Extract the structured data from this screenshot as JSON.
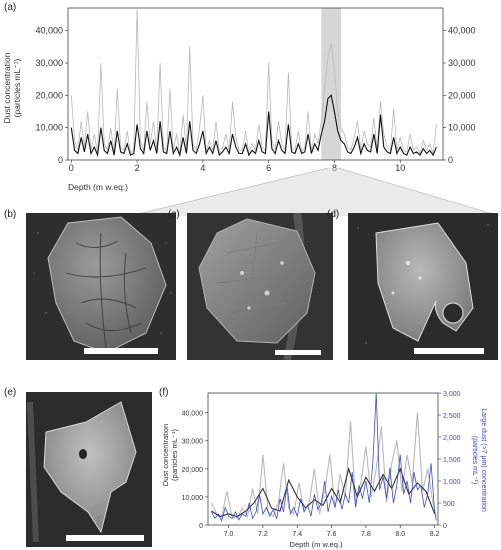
{
  "figure": {
    "panels": {
      "a": "(a)",
      "b": "(b)",
      "c": "(c)",
      "d": "(d)",
      "e": "(e)",
      "f": "(f)"
    }
  },
  "chart_data": [
    {
      "id": "a",
      "type": "line",
      "xlabel": "Depth (m w.eq.)",
      "ylabel": "Dust concentration",
      "ylabel_unit": "(particles mL⁻¹)",
      "xlim": [
        -0.1,
        11.3
      ],
      "ylim": [
        0,
        47000
      ],
      "x_ticks": [
        0,
        2,
        4,
        6,
        8,
        10
      ],
      "y_ticks": [
        0,
        10000,
        20000,
        30000,
        40000
      ],
      "y_tick_labels": [
        "0",
        "10,000",
        "20,000",
        "30,000",
        "40,000"
      ],
      "highlight_region": [
        7.6,
        8.2
      ],
      "series": [
        {
          "color": "#b8b8b8",
          "style": "raw",
          "x": [
            0.0,
            0.1,
            0.2,
            0.3,
            0.4,
            0.5,
            0.6,
            0.7,
            0.8,
            0.9,
            1.0,
            1.1,
            1.2,
            1.3,
            1.4,
            1.5,
            1.6,
            1.7,
            1.8,
            1.9,
            2.0,
            2.1,
            2.2,
            2.3,
            2.4,
            2.5,
            2.6,
            2.7,
            2.8,
            2.9,
            3.0,
            3.1,
            3.2,
            3.3,
            3.4,
            3.5,
            3.6,
            3.7,
            3.8,
            3.9,
            4.0,
            4.1,
            4.2,
            4.3,
            4.4,
            4.5,
            4.6,
            4.7,
            4.8,
            4.9,
            5.0,
            5.1,
            5.2,
            5.3,
            5.4,
            5.5,
            5.6,
            5.7,
            5.8,
            5.9,
            6.0,
            6.1,
            6.2,
            6.3,
            6.4,
            6.5,
            6.6,
            6.7,
            6.8,
            6.9,
            7.0,
            7.1,
            7.2,
            7.3,
            7.4,
            7.5,
            7.6,
            7.7,
            7.8,
            7.9,
            8.0,
            8.1,
            8.2,
            8.3,
            8.4,
            8.5,
            8.6,
            8.7,
            8.8,
            8.9,
            9.0,
            9.1,
            9.2,
            9.3,
            9.4,
            9.5,
            9.6,
            9.7,
            9.8,
            9.9,
            10.0,
            10.1,
            10.2,
            10.3,
            10.4,
            10.5,
            10.6,
            10.7,
            10.8,
            10.9,
            11.0,
            11.1
          ],
          "y": [
            20000,
            6000,
            3000,
            12000,
            4000,
            15000,
            3000,
            8000,
            2000,
            30000,
            5000,
            3000,
            10000,
            2000,
            22000,
            4000,
            3000,
            9000,
            2000,
            3500,
            47000,
            6000,
            3000,
            18000,
            5000,
            12000,
            3000,
            30000,
            4000,
            2500,
            22000,
            3000,
            8000,
            2000,
            14000,
            3000,
            35000,
            5000,
            3000,
            10000,
            20000,
            2500,
            6000,
            3000,
            12000,
            2000,
            4000,
            8000,
            3000,
            18000,
            7000,
            3000,
            3000,
            9000,
            2000,
            5000,
            3000,
            11000,
            4000,
            3000,
            30000,
            6000,
            3000,
            12000,
            5000,
            3000,
            27000,
            4000,
            3000,
            9000,
            2500,
            4000,
            15000,
            3000,
            8000,
            5000,
            12000,
            22000,
            32000,
            36000,
            28000,
            15000,
            10000,
            8000,
            4000,
            3000,
            7000,
            12000,
            3000,
            9000,
            5000,
            4000,
            13000,
            3000,
            18000,
            8000,
            4000,
            3000,
            16000,
            3000,
            7000,
            3000,
            2500,
            8000,
            3000,
            4000,
            2000,
            6000,
            3000,
            5000,
            2000,
            11000
          ]
        },
        {
          "color": "#111111",
          "style": "smoothed",
          "x": [
            0.0,
            0.1,
            0.2,
            0.3,
            0.4,
            0.5,
            0.6,
            0.7,
            0.8,
            0.9,
            1.0,
            1.1,
            1.2,
            1.3,
            1.4,
            1.5,
            1.6,
            1.7,
            1.8,
            1.9,
            2.0,
            2.1,
            2.2,
            2.3,
            2.4,
            2.5,
            2.6,
            2.7,
            2.8,
            2.9,
            3.0,
            3.1,
            3.2,
            3.3,
            3.4,
            3.5,
            3.6,
            3.7,
            3.8,
            3.9,
            4.0,
            4.1,
            4.2,
            4.3,
            4.4,
            4.5,
            4.6,
            4.7,
            4.8,
            4.9,
            5.0,
            5.1,
            5.2,
            5.3,
            5.4,
            5.5,
            5.6,
            5.7,
            5.8,
            5.9,
            6.0,
            6.1,
            6.2,
            6.3,
            6.4,
            6.5,
            6.6,
            6.7,
            6.8,
            6.9,
            7.0,
            7.1,
            7.2,
            7.3,
            7.4,
            7.5,
            7.6,
            7.7,
            7.8,
            7.9,
            8.0,
            8.1,
            8.2,
            8.3,
            8.4,
            8.5,
            8.6,
            8.7,
            8.8,
            8.9,
            9.0,
            9.1,
            9.2,
            9.3,
            9.4,
            9.5,
            9.6,
            9.7,
            9.8,
            9.9,
            10.0,
            10.1,
            10.2,
            10.3,
            10.4,
            10.5,
            10.6,
            10.7,
            10.8,
            10.9,
            11.0,
            11.1
          ],
          "y": [
            10000,
            3000,
            2000,
            7000,
            2500,
            8000,
            2000,
            4000,
            1500,
            10000,
            3000,
            2000,
            6000,
            1500,
            9000,
            2500,
            2000,
            5000,
            1500,
            2000,
            11000,
            3500,
            2000,
            9000,
            3000,
            6000,
            2000,
            12000,
            2500,
            2000,
            9000,
            2000,
            4000,
            1500,
            7000,
            2000,
            12000,
            3000,
            2000,
            5000,
            9000,
            2000,
            4000,
            2000,
            6000,
            1500,
            2500,
            4000,
            2000,
            8000,
            4000,
            2000,
            2000,
            5000,
            1500,
            3000,
            2000,
            6000,
            2500,
            2000,
            15000,
            3500,
            2000,
            6000,
            3000,
            2000,
            11000,
            2500,
            2000,
            5000,
            2000,
            2500,
            8000,
            2000,
            5000,
            3000,
            8000,
            12000,
            19000,
            20000,
            15000,
            9000,
            6000,
            5000,
            2500,
            2000,
            4000,
            7000,
            2000,
            5000,
            3000,
            2500,
            8000,
            2000,
            14000,
            4000,
            2500,
            2000,
            7000,
            2000,
            4000,
            2000,
            1500,
            4000,
            2000,
            2500,
            1500,
            3500,
            2000,
            3000,
            1500,
            4000
          ]
        }
      ]
    },
    {
      "id": "f",
      "type": "line",
      "xlabel": "Depth (m w.eq.)",
      "ylabel": "Dust concentration",
      "ylabel_unit": "(particles mL⁻¹)",
      "y2label": "Large dust (>7 μm) concentration",
      "y2label_unit": "(particles mL⁻¹)",
      "xlim": [
        6.88,
        8.22
      ],
      "ylim": [
        0,
        47000
      ],
      "y2lim": [
        0,
        3000
      ],
      "x_ticks": [
        7.0,
        7.2,
        7.4,
        7.6,
        7.8,
        8.0,
        8.2
      ],
      "x_tick_labels": [
        "7.0",
        "7.2",
        "7.4",
        "7.6",
        "7.8",
        "8.0",
        "8.2"
      ],
      "y_ticks": [
        0,
        10000,
        20000,
        30000,
        40000
      ],
      "y_tick_labels": [
        "0",
        "10,000",
        "20,000",
        "30,000",
        "40,000"
      ],
      "y2_ticks": [
        0,
        500,
        1000,
        1500,
        2000,
        2500,
        3000
      ],
      "y2_tick_labels": [
        "0",
        "500",
        "1,000",
        "1,500",
        "2,000",
        "2,500",
        "3,000"
      ],
      "series": [
        {
          "color": "#b8b8b8",
          "axis": "left",
          "x": [
            6.9,
            6.93,
            6.96,
            6.99,
            7.02,
            7.05,
            7.08,
            7.11,
            7.14,
            7.17,
            7.2,
            7.23,
            7.26,
            7.29,
            7.32,
            7.35,
            7.38,
            7.41,
            7.44,
            7.47,
            7.5,
            7.53,
            7.56,
            7.59,
            7.62,
            7.65,
            7.68,
            7.71,
            7.74,
            7.77,
            7.8,
            7.83,
            7.86,
            7.89,
            7.92,
            7.95,
            7.98,
            8.01,
            8.04,
            8.07,
            8.1,
            8.13,
            8.16,
            8.19,
            8.21
          ],
          "y": [
            8000,
            4000,
            3000,
            12000,
            3000,
            2500,
            6000,
            3000,
            13000,
            4000,
            25000,
            5000,
            3000,
            8000,
            22000,
            6000,
            4000,
            15000,
            5000,
            8000,
            20000,
            4000,
            12000,
            25000,
            6000,
            18000,
            10000,
            37000,
            8000,
            15000,
            28000,
            10000,
            20000,
            35000,
            8000,
            22000,
            30000,
            12000,
            25000,
            15000,
            40000,
            12000,
            20000,
            8000,
            3000
          ]
        },
        {
          "color": "#333333",
          "axis": "left",
          "x": [
            6.9,
            6.95,
            7.0,
            7.05,
            7.1,
            7.15,
            7.2,
            7.25,
            7.3,
            7.35,
            7.4,
            7.45,
            7.5,
            7.55,
            7.6,
            7.65,
            7.7,
            7.75,
            7.8,
            7.85,
            7.9,
            7.95,
            8.0,
            8.05,
            8.1,
            8.15,
            8.2
          ],
          "y": [
            5000,
            3000,
            4000,
            3000,
            5000,
            8000,
            13000,
            6000,
            5000,
            16000,
            10000,
            6000,
            9000,
            7000,
            13000,
            8000,
            20000,
            10000,
            17000,
            12000,
            18000,
            13000,
            20000,
            11000,
            15000,
            12000,
            4000
          ]
        },
        {
          "color": "#3b4bd6",
          "axis": "right",
          "x": [
            6.9,
            6.92,
            6.94,
            6.96,
            6.98,
            7.0,
            7.02,
            7.04,
            7.06,
            7.08,
            7.1,
            7.12,
            7.14,
            7.16,
            7.18,
            7.2,
            7.22,
            7.24,
            7.26,
            7.28,
            7.3,
            7.32,
            7.34,
            7.36,
            7.38,
            7.4,
            7.42,
            7.44,
            7.46,
            7.48,
            7.5,
            7.52,
            7.54,
            7.56,
            7.58,
            7.6,
            7.62,
            7.64,
            7.66,
            7.68,
            7.7,
            7.72,
            7.74,
            7.76,
            7.78,
            7.8,
            7.82,
            7.84,
            7.86,
            7.88,
            7.9,
            7.92,
            7.94,
            7.96,
            7.98,
            8.0,
            8.02,
            8.04,
            8.06,
            8.08,
            8.1,
            8.12,
            8.14,
            8.16,
            8.18,
            8.2,
            8.21
          ],
          "y": [
            300,
            150,
            250,
            100,
            400,
            200,
            150,
            300,
            120,
            250,
            200,
            500,
            150,
            300,
            700,
            250,
            400,
            200,
            350,
            150,
            600,
            300,
            900,
            250,
            400,
            200,
            600,
            300,
            450,
            200,
            700,
            350,
            500,
            1000,
            300,
            650,
            400,
            800,
            350,
            700,
            500,
            1200,
            400,
            900,
            600,
            1000,
            500,
            1400,
            3000,
            800,
            1100,
            600,
            1300,
            500,
            900,
            1600,
            700,
            1000,
            500,
            1200,
            800,
            900,
            400,
            700,
            1400,
            300,
            100
          ]
        }
      ]
    }
  ]
}
